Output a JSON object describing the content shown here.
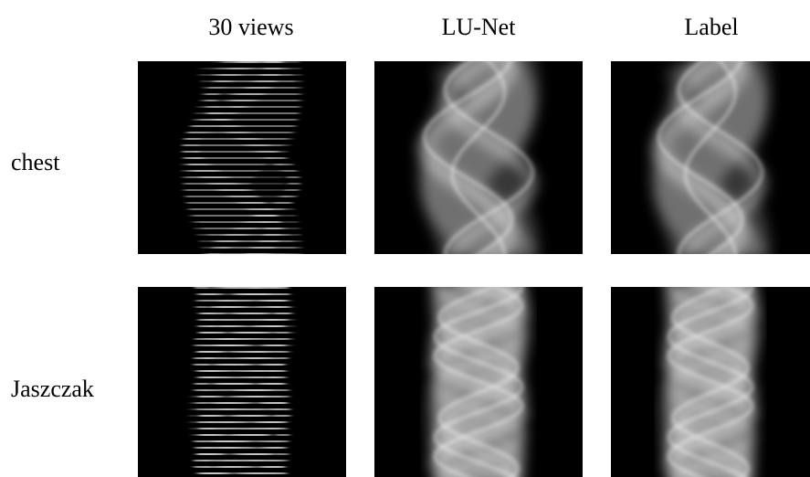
{
  "figure": {
    "columns": [
      "30 views",
      "LU-Net",
      "Label"
    ],
    "rows": [
      "chest",
      "Jaszczak"
    ]
  }
}
